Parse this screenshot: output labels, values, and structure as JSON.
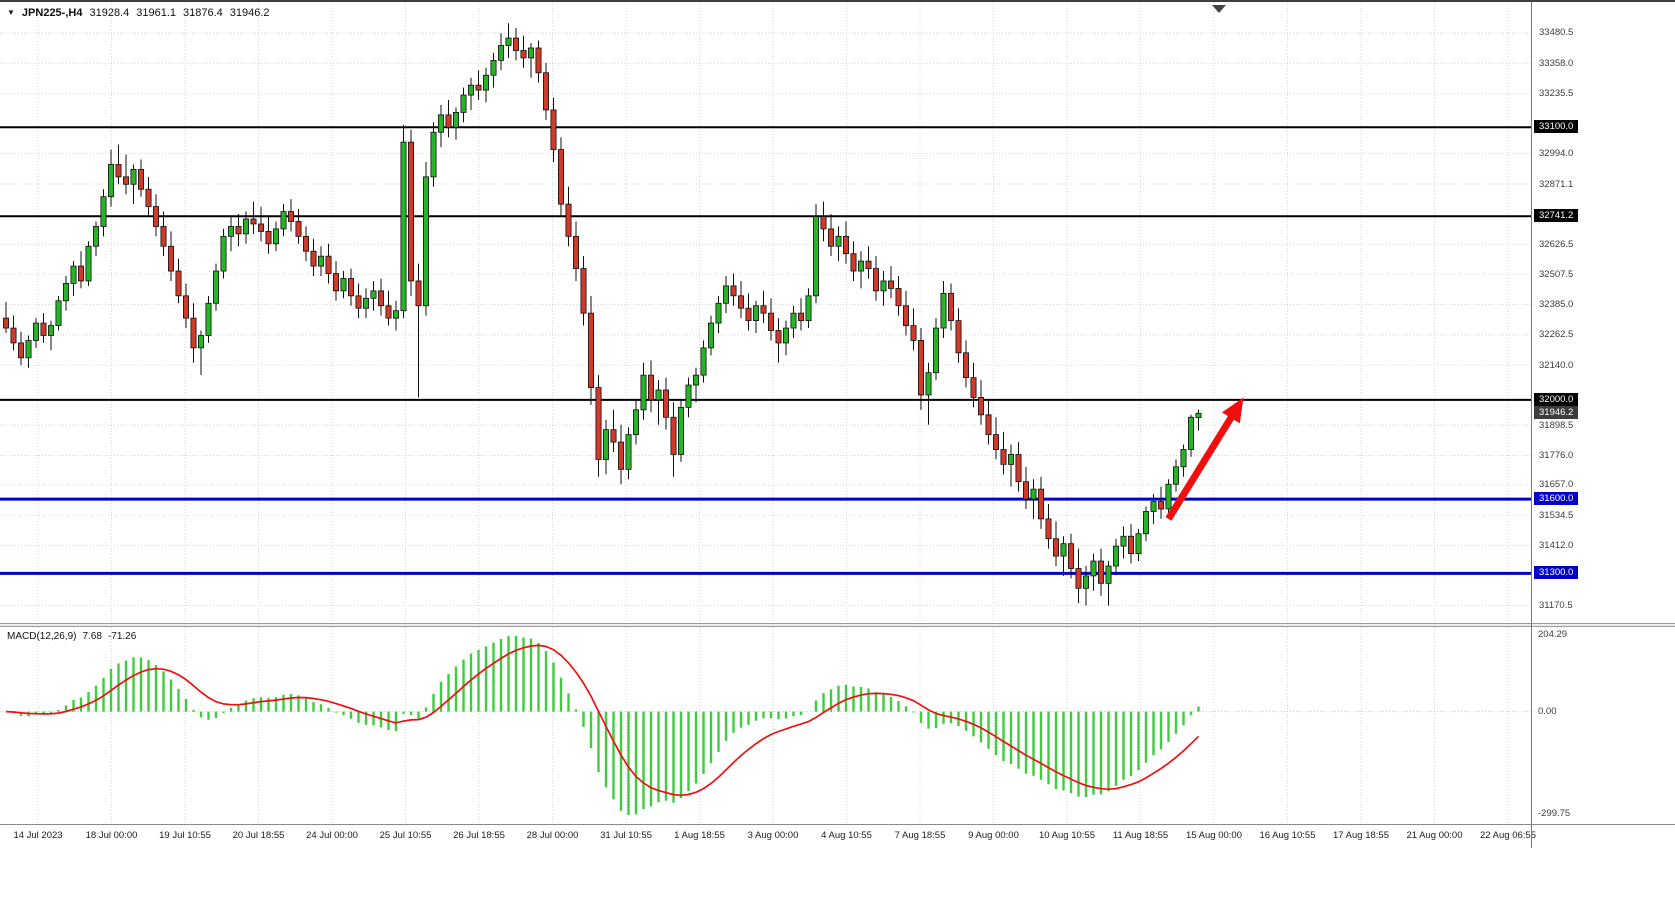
{
  "header": {
    "dropdown_icon": "▼",
    "symbol": "JPN225-,H4",
    "open": "31928.4",
    "high": "31961.1",
    "low": "31876.4",
    "close": "31946.2"
  },
  "macd": {
    "title": "MACD(12,26,9)",
    "macd_value": "7.68",
    "signal_value": "-71.26",
    "axis_top": "204.29",
    "axis_zero": "0.00",
    "axis_bottom": "-299.75"
  },
  "chart_data": {
    "type": "candlestick",
    "symbol": "JPN225-",
    "timeframe": "H4",
    "current_ohlc": {
      "open": 31928.4,
      "high": 31961.1,
      "low": 31876.4,
      "close": 31946.2
    },
    "price_axis": {
      "top_price": 33605.5,
      "bottom_price": 31100.0,
      "ticks": [
        "33480.5",
        "33358.0",
        "33235.5",
        "32994.0",
        "32871.1",
        "32626.5",
        "32507.5",
        "32385.0",
        "32262.5",
        "32140.0",
        "31898.5",
        "31776.0",
        "31657.0",
        "31534.5",
        "31412.0",
        "31170.5"
      ],
      "current_price": {
        "label": "31946.2",
        "price": 31946.2,
        "bg": "#3d3d3d"
      }
    },
    "hlines": [
      {
        "label": "33100.0",
        "price": 33100.0,
        "color": "#000000",
        "width": 2
      },
      {
        "label": "32741.2",
        "price": 32741.2,
        "color": "#000000",
        "width": 2
      },
      {
        "label": "32000.0",
        "price": 32000.0,
        "color": "#000000",
        "width": 2
      },
      {
        "label": "31600.0",
        "price": 31600.0,
        "color": "#0000c8",
        "width": 3
      },
      {
        "label": "31300.0",
        "price": 31300.0,
        "color": "#0000c8",
        "width": 3
      }
    ],
    "time_labels": [
      "14 Jul 2023",
      "18 Jul 00:00",
      "19 Jul 10:55",
      "20 Jul 18:55",
      "24 Jul 00:00",
      "25 Jul 10:55",
      "26 Jul 18:55",
      "28 Jul 00:00",
      "31 Jul 10:55",
      "1 Aug 18:55",
      "3 Aug 00:00",
      "4 Aug 10:55",
      "7 Aug 18:55",
      "9 Aug 00:00",
      "10 Aug 10:55",
      "11 Aug 18:55",
      "15 Aug 00:00",
      "16 Aug 10:55",
      "17 Aug 18:55",
      "21 Aug 00:00",
      "22 Aug 06:55"
    ],
    "candles": [
      [
        32330,
        32395,
        32270,
        32290
      ],
      [
        32290,
        32340,
        32200,
        32230
      ],
      [
        32230,
        32275,
        32140,
        32170
      ],
      [
        32170,
        32260,
        32130,
        32240
      ],
      [
        32240,
        32330,
        32210,
        32310
      ],
      [
        32310,
        32350,
        32230,
        32260
      ],
      [
        32260,
        32320,
        32200,
        32300
      ],
      [
        32300,
        32420,
        32280,
        32400
      ],
      [
        32400,
        32500,
        32360,
        32470
      ],
      [
        32470,
        32560,
        32420,
        32540
      ],
      [
        32540,
        32600,
        32450,
        32480
      ],
      [
        32480,
        32640,
        32460,
        32620
      ],
      [
        32620,
        32720,
        32580,
        32700
      ],
      [
        32700,
        32850,
        32660,
        32820
      ],
      [
        32820,
        33010,
        32780,
        32950
      ],
      [
        32950,
        33030,
        32870,
        32900
      ],
      [
        32900,
        32990,
        32830,
        32870
      ],
      [
        32870,
        32950,
        32790,
        32930
      ],
      [
        32930,
        32970,
        32820,
        32850
      ],
      [
        32850,
        32900,
        32740,
        32780
      ],
      [
        32780,
        32830,
        32660,
        32700
      ],
      [
        32700,
        32760,
        32580,
        32620
      ],
      [
        32620,
        32680,
        32480,
        32520
      ],
      [
        32520,
        32570,
        32390,
        32420
      ],
      [
        32420,
        32470,
        32290,
        32330
      ],
      [
        32330,
        32390,
        32150,
        32210
      ],
      [
        32210,
        32280,
        32100,
        32260
      ],
      [
        32260,
        32420,
        32230,
        32390
      ],
      [
        32390,
        32550,
        32360,
        32520
      ],
      [
        32520,
        32690,
        32490,
        32660
      ],
      [
        32660,
        32740,
        32600,
        32700
      ],
      [
        32700,
        32750,
        32620,
        32670
      ],
      [
        32670,
        32760,
        32630,
        32730
      ],
      [
        32730,
        32800,
        32670,
        32710
      ],
      [
        32710,
        32780,
        32640,
        32680
      ],
      [
        32680,
        32740,
        32590,
        32630
      ],
      [
        32630,
        32720,
        32600,
        32690
      ],
      [
        32690,
        32790,
        32660,
        32760
      ],
      [
        32760,
        32810,
        32680,
        32720
      ],
      [
        32720,
        32770,
        32630,
        32660
      ],
      [
        32660,
        32700,
        32560,
        32600
      ],
      [
        32600,
        32650,
        32500,
        32540
      ],
      [
        32540,
        32620,
        32500,
        32580
      ],
      [
        32580,
        32630,
        32470,
        32510
      ],
      [
        32510,
        32560,
        32400,
        32440
      ],
      [
        32440,
        32520,
        32410,
        32490
      ],
      [
        32490,
        32530,
        32380,
        32420
      ],
      [
        32420,
        32470,
        32330,
        32370
      ],
      [
        32370,
        32450,
        32330,
        32410
      ],
      [
        32410,
        32480,
        32360,
        32440
      ],
      [
        32440,
        32490,
        32340,
        32380
      ],
      [
        32380,
        32440,
        32300,
        32330
      ],
      [
        32330,
        32400,
        32280,
        32360
      ],
      [
        32360,
        33110,
        32330,
        33040
      ],
      [
        33040,
        33090,
        32420,
        32480
      ],
      [
        32480,
        32550,
        32010,
        32380
      ],
      [
        32380,
        32960,
        32340,
        32900
      ],
      [
        32900,
        33120,
        32860,
        33080
      ],
      [
        33080,
        33190,
        33020,
        33150
      ],
      [
        33150,
        33210,
        33060,
        33100
      ],
      [
        33100,
        33180,
        33050,
        33160
      ],
      [
        33160,
        33260,
        33120,
        33230
      ],
      [
        33230,
        33300,
        33170,
        33270
      ],
      [
        33270,
        33330,
        33210,
        33250
      ],
      [
        33250,
        33340,
        33200,
        33310
      ],
      [
        33310,
        33400,
        33260,
        33370
      ],
      [
        33370,
        33480,
        33330,
        33430
      ],
      [
        33430,
        33520,
        33380,
        33460
      ],
      [
        33460,
        33500,
        33370,
        33410
      ],
      [
        33410,
        33470,
        33340,
        33380
      ],
      [
        33380,
        33440,
        33300,
        33420
      ],
      [
        33420,
        33450,
        33280,
        33320
      ],
      [
        33320,
        33360,
        33130,
        33170
      ],
      [
        33170,
        33220,
        32960,
        33010
      ],
      [
        33010,
        33060,
        32740,
        32790
      ],
      [
        32790,
        32860,
        32620,
        32660
      ],
      [
        32660,
        32720,
        32480,
        32530
      ],
      [
        32530,
        32580,
        32300,
        32350
      ],
      [
        32350,
        32420,
        31980,
        32050
      ],
      [
        32050,
        32100,
        31690,
        31760
      ],
      [
        31760,
        31920,
        31700,
        31880
      ],
      [
        31880,
        31960,
        31790,
        31830
      ],
      [
        31830,
        31900,
        31660,
        31720
      ],
      [
        31720,
        31890,
        31680,
        31860
      ],
      [
        31860,
        32000,
        31820,
        31960
      ],
      [
        31960,
        32150,
        31920,
        32100
      ],
      [
        32100,
        32160,
        31950,
        32000
      ],
      [
        32000,
        32080,
        31900,
        32040
      ],
      [
        32040,
        32090,
        31880,
        31930
      ],
      [
        31930,
        31990,
        31690,
        31780
      ],
      [
        31780,
        32000,
        31750,
        31970
      ],
      [
        31970,
        32090,
        31930,
        32060
      ],
      [
        32060,
        32130,
        31990,
        32100
      ],
      [
        32100,
        32240,
        32070,
        32210
      ],
      [
        32210,
        32340,
        32180,
        32310
      ],
      [
        32310,
        32420,
        32270,
        32390
      ],
      [
        32390,
        32500,
        32350,
        32460
      ],
      [
        32460,
        32510,
        32380,
        32420
      ],
      [
        32420,
        32480,
        32330,
        32370
      ],
      [
        32370,
        32430,
        32280,
        32320
      ],
      [
        32320,
        32400,
        32270,
        32380
      ],
      [
        32380,
        32440,
        32310,
        32350
      ],
      [
        32350,
        32410,
        32240,
        32280
      ],
      [
        32280,
        32330,
        32150,
        32230
      ],
      [
        32230,
        32320,
        32180,
        32290
      ],
      [
        32290,
        32380,
        32250,
        32350
      ],
      [
        32350,
        32410,
        32280,
        32320
      ],
      [
        32320,
        32450,
        32290,
        32420
      ],
      [
        32420,
        32790,
        32390,
        32740
      ],
      [
        32740,
        32800,
        32640,
        32690
      ],
      [
        32690,
        32750,
        32580,
        32620
      ],
      [
        32620,
        32700,
        32560,
        32660
      ],
      [
        32660,
        32720,
        32550,
        32590
      ],
      [
        32590,
        32640,
        32480,
        32520
      ],
      [
        32520,
        32600,
        32450,
        32560
      ],
      [
        32560,
        32620,
        32490,
        32530
      ],
      [
        32530,
        32580,
        32400,
        32440
      ],
      [
        32440,
        32520,
        32380,
        32480
      ],
      [
        32480,
        32540,
        32410,
        32450
      ],
      [
        32450,
        32500,
        32340,
        32380
      ],
      [
        32380,
        32440,
        32260,
        32300
      ],
      [
        32300,
        32370,
        32200,
        32240
      ],
      [
        32240,
        32290,
        31960,
        32020
      ],
      [
        32020,
        32150,
        31900,
        32110
      ],
      [
        32110,
        32330,
        32080,
        32290
      ],
      [
        32290,
        32480,
        32250,
        32430
      ],
      [
        32430,
        32470,
        32280,
        32320
      ],
      [
        32320,
        32370,
        32150,
        32190
      ],
      [
        32190,
        32240,
        32050,
        32090
      ],
      [
        32090,
        32150,
        31970,
        32010
      ],
      [
        32010,
        32080,
        31900,
        31940
      ],
      [
        31940,
        32000,
        31820,
        31860
      ],
      [
        31860,
        31930,
        31760,
        31800
      ],
      [
        31800,
        31870,
        31700,
        31740
      ],
      [
        31740,
        31820,
        31650,
        31780
      ],
      [
        31780,
        31830,
        31630,
        31670
      ],
      [
        31670,
        31730,
        31560,
        31600
      ],
      [
        31600,
        31680,
        31520,
        31640
      ],
      [
        31640,
        31690,
        31480,
        31520
      ],
      [
        31520,
        31580,
        31400,
        31440
      ],
      [
        31440,
        31510,
        31330,
        31370
      ],
      [
        31370,
        31450,
        31290,
        31420
      ],
      [
        31420,
        31460,
        31280,
        31320
      ],
      [
        31320,
        31400,
        31180,
        31240
      ],
      [
        31240,
        31330,
        31170,
        31290
      ],
      [
        31290,
        31380,
        31230,
        31350
      ],
      [
        31350,
        31400,
        31210,
        31260
      ],
      [
        31260,
        31350,
        31170,
        31330
      ],
      [
        31330,
        31440,
        31300,
        31410
      ],
      [
        31410,
        31490,
        31360,
        31450
      ],
      [
        31450,
        31500,
        31340,
        31380
      ],
      [
        31380,
        31480,
        31350,
        31460
      ],
      [
        31460,
        31570,
        31430,
        31550
      ],
      [
        31550,
        31620,
        31500,
        31590
      ],
      [
        31590,
        31650,
        31520,
        31560
      ],
      [
        31560,
        31680,
        31540,
        31660
      ],
      [
        31660,
        31760,
        31630,
        31730
      ],
      [
        31730,
        31820,
        31690,
        31800
      ],
      [
        31800,
        31940,
        31770,
        31930
      ],
      [
        31928.4,
        31961.1,
        31876.4,
        31946.2
      ]
    ],
    "arrow": {
      "from_bar": 155,
      "from_price": 31520,
      "to_bar": 165,
      "to_price": 32010,
      "color": "#f00e0e"
    },
    "indicator": {
      "name": "MACD",
      "fast": 12,
      "slow": 26,
      "signal": 9,
      "current_macd": 7.68,
      "current_signal": -71.26,
      "panel_max": 204.29,
      "panel_min": -299.75
    },
    "colors": {
      "bull": "#28b428",
      "bear": "#cf3a2b",
      "wick": "#111111",
      "grid": "#d6d6d6",
      "macd_hist": "#3fcc3f",
      "macd_signal": "#ee1111",
      "background": "#ffffff",
      "level_blue": "#0000c8",
      "level_black": "#000000"
    }
  }
}
